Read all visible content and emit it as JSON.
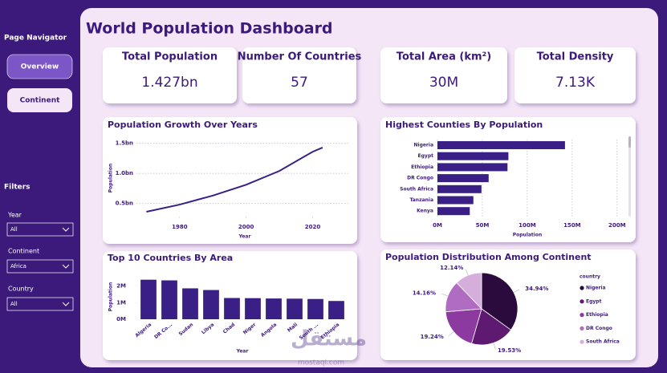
{
  "navigator": {
    "title": "Page Navigator",
    "buttons": [
      "Overview",
      "Continent"
    ]
  },
  "filters": {
    "title": "Filters",
    "items": [
      {
        "label": "Year",
        "value": "All"
      },
      {
        "label": "Continent",
        "value": "Africa"
      },
      {
        "label": "Country",
        "value": "All"
      }
    ]
  },
  "header": {
    "title": "World Population Dashboard"
  },
  "kpis": [
    {
      "label": "Total Population",
      "value": "1.427bn"
    },
    {
      "label": "Number Of Countries",
      "value": "57"
    },
    {
      "label": "Total Area (km²)",
      "value": "30M"
    },
    {
      "label": "Total Density",
      "value": "7.13K"
    }
  ],
  "watermark": {
    "arabic": "مستقل",
    "latin": "mostaql.com"
  },
  "chart_data": [
    {
      "type": "line",
      "title": "Population Growth Over Years",
      "xlabel": "Year",
      "ylabel": "Population",
      "x": [
        1970,
        1980,
        1990,
        2000,
        2010,
        2020,
        2023
      ],
      "values": [
        0.36,
        0.48,
        0.63,
        0.81,
        1.04,
        1.36,
        1.43
      ],
      "color": "#3a1f86",
      "xlim": [
        1967,
        2031
      ],
      "xticks": [
        1980,
        2000,
        2020
      ],
      "ylim": [
        0.28,
        1.55
      ],
      "yticks": [
        {
          "value": 0.5,
          "label": "0.5bn"
        },
        {
          "value": 1.0,
          "label": "1.0bn"
        },
        {
          "value": 1.5,
          "label": "1.5bn"
        }
      ],
      "grid": true
    },
    {
      "type": "bar",
      "orientation": "horizontal",
      "title": "Highest Counties By Population",
      "xlabel": "Population",
      "categories": [
        "Nigeria",
        "Egypt",
        "Ethiopia",
        "DR Congo",
        "South Africa",
        "Tanzania",
        "Kenya"
      ],
      "values": [
        142,
        79,
        78,
        57,
        49,
        40,
        36
      ],
      "color": "#3a1f86",
      "xlim": [
        0,
        210
      ],
      "xticks": [
        {
          "value": 0,
          "label": "0M"
        },
        {
          "value": 50,
          "label": "50M"
        },
        {
          "value": 100,
          "label": "100M"
        },
        {
          "value": 150,
          "label": "150M"
        },
        {
          "value": 200,
          "label": "200M"
        }
      ],
      "grid": true
    },
    {
      "type": "bar",
      "orientation": "vertical",
      "title": "Top 10 Countries By Area",
      "xlabel": "Year",
      "ylabel": "Population",
      "categories": [
        "Algeria",
        "DR Co...",
        "Sudan",
        "Libya",
        "Chad",
        "Niger",
        "Angola",
        "Mali",
        "South ...",
        "Ethiopia"
      ],
      "values": [
        2.38,
        2.34,
        1.86,
        1.76,
        1.28,
        1.27,
        1.25,
        1.24,
        1.22,
        1.1
      ],
      "color": "#3a1f86",
      "ylim": [
        0,
        2.8
      ],
      "yticks": [
        {
          "value": 0,
          "label": "0M"
        },
        {
          "value": 1,
          "label": "1M"
        },
        {
          "value": 2,
          "label": "2M"
        }
      ],
      "grid": false
    },
    {
      "type": "pie",
      "title": "Population Distribution Among Continent",
      "legend_title": "country",
      "categories": [
        "Nigeria",
        "Egypt",
        "Ethiopia",
        "DR Congo",
        "South Africa"
      ],
      "values": [
        34.94,
        19.53,
        19.24,
        14.16,
        12.14
      ],
      "value_labels": [
        "34.94%",
        "19.53%",
        "19.24%",
        "14.16%",
        "12.14%"
      ],
      "colors": [
        "#2b0b3d",
        "#5d1a70",
        "#8c3a9f",
        "#b06cc0",
        "#d5aedb"
      ]
    }
  ]
}
